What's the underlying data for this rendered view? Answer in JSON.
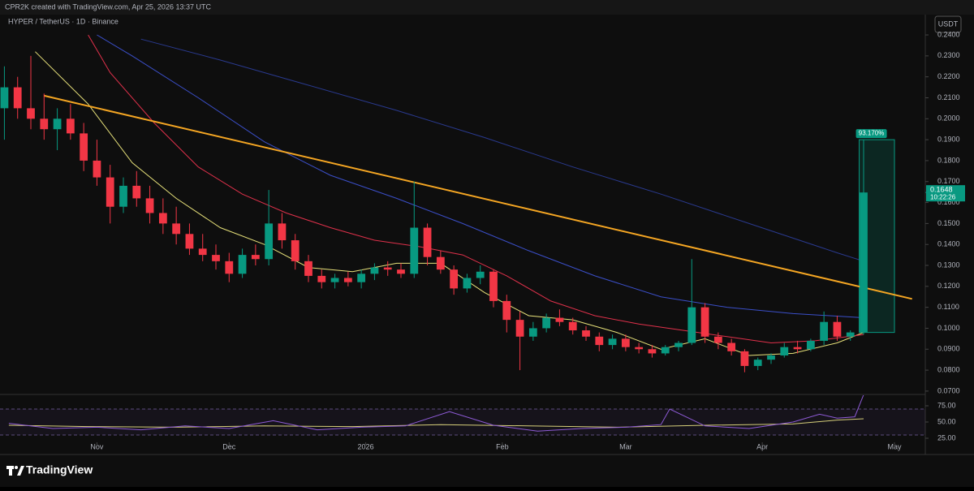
{
  "header": {
    "caption": "CPR2K created with TradingView.com, Apr 25, 2026 13:37 UTC"
  },
  "chart_data": {
    "type": "candlestick",
    "symbol": "HYPER / TetherUS · 1D · Binance",
    "currency": "USDT",
    "colors": {
      "up": "#089981",
      "down": "#f23645"
    },
    "x": [
      1,
      4,
      7,
      10,
      13,
      16,
      19,
      22,
      25,
      28,
      31,
      34,
      37,
      40,
      43,
      46,
      49,
      52,
      55,
      58,
      61,
      64,
      67,
      70,
      73,
      76,
      79,
      82,
      85,
      88,
      91,
      94,
      97,
      100,
      103,
      106,
      109,
      112,
      115,
      118,
      121,
      124,
      127,
      130,
      133,
      136,
      139,
      142,
      145,
      148,
      151,
      154,
      157,
      160,
      163,
      166,
      169,
      172,
      175,
      178,
      181,
      184,
      187,
      190,
      193,
      196
    ],
    "candles": [
      [
        0.205,
        0.225,
        0.19,
        0.215
      ],
      [
        0.215,
        0.22,
        0.2,
        0.205
      ],
      [
        0.205,
        0.23,
        0.195,
        0.2
      ],
      [
        0.2,
        0.212,
        0.19,
        0.195
      ],
      [
        0.195,
        0.205,
        0.185,
        0.2
      ],
      [
        0.2,
        0.207,
        0.19,
        0.193
      ],
      [
        0.193,
        0.198,
        0.175,
        0.18
      ],
      [
        0.18,
        0.19,
        0.168,
        0.172
      ],
      [
        0.172,
        0.178,
        0.15,
        0.158
      ],
      [
        0.158,
        0.172,
        0.155,
        0.168
      ],
      [
        0.168,
        0.175,
        0.158,
        0.162
      ],
      [
        0.162,
        0.168,
        0.15,
        0.155
      ],
      [
        0.155,
        0.162,
        0.145,
        0.15
      ],
      [
        0.15,
        0.158,
        0.14,
        0.145
      ],
      [
        0.145,
        0.15,
        0.135,
        0.138
      ],
      [
        0.138,
        0.145,
        0.132,
        0.135
      ],
      [
        0.135,
        0.14,
        0.128,
        0.132
      ],
      [
        0.132,
        0.136,
        0.122,
        0.126
      ],
      [
        0.126,
        0.138,
        0.124,
        0.135
      ],
      [
        0.135,
        0.14,
        0.13,
        0.133
      ],
      [
        0.133,
        0.166,
        0.13,
        0.15
      ],
      [
        0.15,
        0.155,
        0.138,
        0.142
      ],
      [
        0.142,
        0.145,
        0.128,
        0.132
      ],
      [
        0.132,
        0.135,
        0.122,
        0.125
      ],
      [
        0.125,
        0.128,
        0.119,
        0.122
      ],
      [
        0.122,
        0.126,
        0.119,
        0.124
      ],
      [
        0.124,
        0.127,
        0.12,
        0.122
      ],
      [
        0.122,
        0.128,
        0.119,
        0.126
      ],
      [
        0.126,
        0.131,
        0.123,
        0.129
      ],
      [
        0.129,
        0.132,
        0.125,
        0.128
      ],
      [
        0.128,
        0.131,
        0.124,
        0.126
      ],
      [
        0.126,
        0.17,
        0.124,
        0.148
      ],
      [
        0.148,
        0.15,
        0.13,
        0.134
      ],
      [
        0.134,
        0.137,
        0.126,
        0.128
      ],
      [
        0.128,
        0.13,
        0.116,
        0.119
      ],
      [
        0.119,
        0.126,
        0.117,
        0.124
      ],
      [
        0.124,
        0.13,
        0.121,
        0.127
      ],
      [
        0.127,
        0.128,
        0.11,
        0.113
      ],
      [
        0.113,
        0.116,
        0.098,
        0.104
      ],
      [
        0.104,
        0.108,
        0.08,
        0.096
      ],
      [
        0.096,
        0.103,
        0.094,
        0.1
      ],
      [
        0.1,
        0.107,
        0.098,
        0.105
      ],
      [
        0.105,
        0.109,
        0.101,
        0.103
      ],
      [
        0.103,
        0.105,
        0.097,
        0.099
      ],
      [
        0.099,
        0.101,
        0.094,
        0.096
      ],
      [
        0.096,
        0.098,
        0.089,
        0.092
      ],
      [
        0.092,
        0.097,
        0.09,
        0.095
      ],
      [
        0.095,
        0.097,
        0.089,
        0.091
      ],
      [
        0.091,
        0.093,
        0.088,
        0.09
      ],
      [
        0.09,
        0.092,
        0.086,
        0.088
      ],
      [
        0.088,
        0.092,
        0.087,
        0.091
      ],
      [
        0.091,
        0.094,
        0.089,
        0.093
      ],
      [
        0.093,
        0.133,
        0.092,
        0.11
      ],
      [
        0.11,
        0.112,
        0.093,
        0.096
      ],
      [
        0.096,
        0.098,
        0.09,
        0.093
      ],
      [
        0.093,
        0.095,
        0.087,
        0.089
      ],
      [
        0.089,
        0.09,
        0.079,
        0.082
      ],
      [
        0.082,
        0.086,
        0.08,
        0.085
      ],
      [
        0.085,
        0.088,
        0.083,
        0.087
      ],
      [
        0.087,
        0.093,
        0.086,
        0.091
      ],
      [
        0.091,
        0.094,
        0.088,
        0.09
      ],
      [
        0.09,
        0.095,
        0.089,
        0.094
      ],
      [
        0.094,
        0.108,
        0.092,
        0.103
      ],
      [
        0.103,
        0.106,
        0.094,
        0.096
      ],
      [
        0.096,
        0.099,
        0.094,
        0.098
      ],
      [
        0.098,
        0.19,
        0.097,
        0.1648
      ]
    ],
    "moving_averages": [
      {
        "color": "#e8e27a",
        "x": [
          8,
          20,
          30,
          40,
          50,
          60,
          70,
          80,
          90,
          100,
          110,
          120,
          130,
          140,
          150,
          160,
          170,
          180,
          190,
          196
        ],
        "values": [
          0.232,
          0.207,
          0.179,
          0.162,
          0.148,
          0.14,
          0.129,
          0.127,
          0.131,
          0.131,
          0.117,
          0.106,
          0.104,
          0.098,
          0.09,
          0.095,
          0.087,
          0.088,
          0.093,
          0.098
        ]
      },
      {
        "color": "#e0314b",
        "x": [
          20,
          25,
          35,
          45,
          55,
          65,
          75,
          85,
          95,
          105,
          115,
          125,
          135,
          145,
          155,
          165,
          175,
          185,
          196
        ],
        "values": [
          0.24,
          0.222,
          0.198,
          0.177,
          0.164,
          0.155,
          0.148,
          0.142,
          0.139,
          0.135,
          0.125,
          0.113,
          0.106,
          0.102,
          0.099,
          0.096,
          0.093,
          0.094,
          0.097
        ]
      },
      {
        "color": "#3b4fc9",
        "x": [
          22,
          30,
          45,
          60,
          75,
          90,
          105,
          120,
          135,
          150,
          165,
          180,
          196
        ],
        "values": [
          0.24,
          0.23,
          0.21,
          0.189,
          0.173,
          0.162,
          0.15,
          0.137,
          0.125,
          0.115,
          0.11,
          0.107,
          0.105
        ]
      },
      {
        "color": "#2a3a8f",
        "x": [
          32,
          50,
          70,
          90,
          110,
          130,
          150,
          170,
          190,
          196
        ],
        "values": [
          0.238,
          0.228,
          0.216,
          0.204,
          0.191,
          0.177,
          0.164,
          0.15,
          0.136,
          0.132
        ]
      }
    ],
    "trendline": {
      "color": "#f5a623",
      "x": [
        10,
        207
      ],
      "values": [
        0.211,
        0.114
      ]
    },
    "measure": {
      "x": [
        195,
        203
      ],
      "values": [
        0.098,
        0.19
      ],
      "change": {
        "value": 93.17,
        "label": "93.170%"
      }
    },
    "last_price": 0.1648,
    "countdown": "10:22:26",
    "xlim": [
      0,
      210
    ],
    "xticks": [
      {
        "value": 22,
        "label": "Nov"
      },
      {
        "value": 52,
        "label": "Dec"
      },
      {
        "value": 83,
        "label": "2026"
      },
      {
        "value": 114,
        "label": "Feb"
      },
      {
        "value": 142,
        "label": "Mar"
      },
      {
        "value": 173,
        "label": "Apr"
      },
      {
        "value": 203,
        "label": "May"
      }
    ],
    "ylim": [
      0.0688,
      0.2497
    ],
    "yticks": [
      {
        "value": 0.07,
        "label": "0.0700"
      },
      {
        "value": 0.08,
        "label": "0.0800"
      },
      {
        "value": 0.09,
        "label": "0.0900"
      },
      {
        "value": 0.1,
        "label": "0.1000"
      },
      {
        "value": 0.11,
        "label": "0.1100"
      },
      {
        "value": 0.12,
        "label": "0.1200"
      },
      {
        "value": 0.13,
        "label": "0.1300"
      },
      {
        "value": 0.14,
        "label": "0.1400"
      },
      {
        "value": 0.15,
        "label": "0.1500"
      },
      {
        "value": 0.16,
        "label": "0.1600"
      },
      {
        "value": 0.17,
        "label": "0.1700"
      },
      {
        "value": 0.18,
        "label": "0.1800"
      },
      {
        "value": 0.19,
        "label": "0.1900"
      },
      {
        "value": 0.2,
        "label": "0.2000"
      },
      {
        "value": 0.21,
        "label": "0.2100"
      },
      {
        "value": 0.22,
        "label": "0.2200"
      },
      {
        "value": 0.23,
        "label": "0.2300"
      },
      {
        "value": 0.24,
        "label": "0.2400"
      }
    ],
    "rsi": {
      "color": "#8e5bd6",
      "ma_color": "#d6cf7a",
      "x": [
        2,
        12,
        22,
        32,
        42,
        52,
        62,
        72,
        82,
        92,
        102,
        112,
        122,
        132,
        142,
        150,
        152,
        160,
        170,
        180,
        186,
        190,
        194,
        196
      ],
      "values": [
        48,
        40,
        42,
        38,
        44,
        40,
        52,
        38,
        42,
        44,
        66,
        45,
        36,
        40,
        42,
        46,
        70,
        44,
        40,
        50,
        62,
        56,
        58,
        92
      ],
      "ma_x": [
        2,
        20,
        40,
        60,
        80,
        100,
        120,
        140,
        160,
        180,
        190,
        196
      ],
      "ma_values": [
        45,
        43,
        42,
        44,
        43,
        46,
        44,
        42,
        45,
        47,
        53,
        55
      ],
      "bands": [
        70,
        30
      ],
      "ylim": [
        18.75,
        91.25
      ],
      "yticks": [
        {
          "value": 75,
          "label": "75.00"
        },
        {
          "value": 50,
          "label": "50.00"
        },
        {
          "value": 25,
          "label": "25.00"
        }
      ]
    }
  },
  "footer": {
    "brand": "TradingView"
  }
}
